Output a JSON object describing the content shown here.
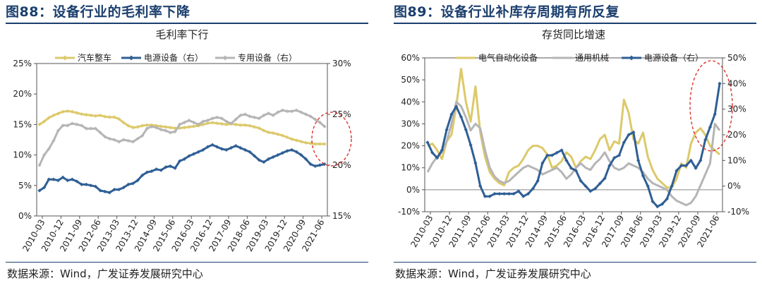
{
  "left": {
    "figure_title": "图88：设备行业的毛利率下降",
    "source": "数据来源：Wind，广发证券发展研究中心",
    "chart_data": {
      "type": "line",
      "title": "毛利率下行",
      "x_ticks": [
        "2010-03",
        "2010-12",
        "2011-09",
        "2012-06",
        "2013-03",
        "2013-12",
        "2014-09",
        "2015-06",
        "2016-03",
        "2016-12",
        "2017-09",
        "2018-06",
        "2019-03",
        "2019-12",
        "2020-09",
        "2021-06"
      ],
      "y_left": {
        "min": 0,
        "max": 25,
        "ticks": [
          "0%",
          "5%",
          "10%",
          "15%",
          "20%",
          "25%"
        ]
      },
      "y_right": {
        "min": 15,
        "max": 30,
        "ticks": [
          "15%",
          "20%",
          "25%",
          "30%"
        ]
      },
      "series": [
        {
          "name": "汽车整车",
          "axis": "left",
          "color": "#dcc96a",
          "marker": "diamond",
          "values": [
            15.0,
            15.5,
            16.1,
            16.5,
            16.8,
            17.1,
            17.2,
            17.1,
            16.9,
            16.7,
            16.6,
            16.5,
            16.4,
            16.5,
            16.3,
            16.2,
            16.2,
            15.9,
            15.3,
            14.8,
            14.5,
            14.6,
            14.8,
            14.9,
            14.9,
            14.8,
            14.7,
            14.6,
            14.5,
            14.4,
            14.4,
            14.5,
            14.6,
            14.7,
            14.8,
            15.0,
            15.2,
            15.3,
            15.2,
            15.1,
            15.0,
            15.1,
            15.0,
            14.9,
            14.9,
            14.8,
            14.6,
            14.4,
            14.0,
            13.7,
            13.6,
            13.4,
            13.2,
            12.9,
            12.6,
            12.4,
            12.2,
            12.0,
            11.9,
            11.8,
            11.8,
            11.8
          ]
        },
        {
          "name": "电源设备（右）",
          "axis": "right",
          "color": "#2f5f95",
          "marker": "diamond",
          "values": [
            17.5,
            17.8,
            18.6,
            18.6,
            18.5,
            18.8,
            18.5,
            18.6,
            18.4,
            18.1,
            18.1,
            18.0,
            17.9,
            17.5,
            17.4,
            17.3,
            17.6,
            17.6,
            17.8,
            18.1,
            18.2,
            18.5,
            19.0,
            19.3,
            19.4,
            19.6,
            19.5,
            19.8,
            19.9,
            19.7,
            20.4,
            20.6,
            20.9,
            21.1,
            21.3,
            21.5,
            21.8,
            22.0,
            21.8,
            21.6,
            21.5,
            21.7,
            21.9,
            21.7,
            21.5,
            21.3,
            20.9,
            20.5,
            20.3,
            20.6,
            20.8,
            21.0,
            21.2,
            21.4,
            21.5,
            21.3,
            21.0,
            20.6,
            20.1,
            19.9,
            20.0,
            20.1
          ]
        },
        {
          "name": "专用设备（右）",
          "axis": "right",
          "color": "#b5b5b5",
          "marker": "diamond",
          "values": [
            20.0,
            21.0,
            21.6,
            22.4,
            23.4,
            23.9,
            23.9,
            24.1,
            24.0,
            23.9,
            23.6,
            23.6,
            23.6,
            23.2,
            22.8,
            22.6,
            22.5,
            22.3,
            22.5,
            22.4,
            22.3,
            22.6,
            22.9,
            23.6,
            23.8,
            23.7,
            23.5,
            23.4,
            23.2,
            23.3,
            24.0,
            24.2,
            24.4,
            24.2,
            24.0,
            24.3,
            24.4,
            24.6,
            24.7,
            24.6,
            24.3,
            24.1,
            24.5,
            24.9,
            25.0,
            24.8,
            24.7,
            24.6,
            24.9,
            25.1,
            24.9,
            25.2,
            25.4,
            25.3,
            25.3,
            25.4,
            25.2,
            25.0,
            24.8,
            24.5,
            24.2,
            23.8
          ]
        }
      ],
      "legend": "top"
    }
  },
  "right": {
    "figure_title": "图89：设备行业补库存周期有所反复",
    "source": "数据来源：Wind，广发证券发展研究中心",
    "chart_data": {
      "type": "line",
      "title": "存货同比增速",
      "x_ticks": [
        "2010-03",
        "2010-12",
        "2011-09",
        "2012-06",
        "2013-03",
        "2013-12",
        "2014-09",
        "2015-06",
        "2016-03",
        "2016-12",
        "2017-09",
        "2018-06",
        "2019-03",
        "2019-12",
        "2020-09",
        "2021-06"
      ],
      "y_left": {
        "min": -10,
        "max": 60,
        "ticks": [
          "-10%",
          "0%",
          "10%",
          "20%",
          "30%",
          "40%",
          "50%",
          "60%"
        ]
      },
      "y_right": {
        "min": -10,
        "max": 50,
        "ticks": [
          "-10%",
          "0%",
          "10%",
          "20%",
          "30%",
          "40%",
          "50%"
        ]
      },
      "series": [
        {
          "name": "电气自动化设备",
          "axis": "left",
          "color": "#dcc96a",
          "marker": "none",
          "values": [
            20,
            21,
            18,
            14,
            22,
            25,
            38,
            55,
            40,
            31,
            47,
            26,
            15,
            8,
            5,
            3,
            2,
            8,
            10,
            11,
            14,
            18,
            20,
            20,
            19,
            16,
            10,
            11,
            13,
            17,
            15,
            10,
            13,
            15,
            14,
            18,
            23,
            25,
            18,
            22,
            21,
            41,
            35,
            23,
            21,
            26,
            15,
            9,
            5,
            3,
            1,
            1,
            5,
            12,
            10,
            21,
            26,
            28,
            25,
            20,
            18,
            16
          ]
        },
        {
          "name": "通用机械",
          "axis": "left",
          "color": "#b5b5b5",
          "marker": "none",
          "values": [
            8,
            12,
            15,
            17,
            22,
            30,
            40,
            38,
            33,
            27,
            30,
            28,
            18,
            10,
            6,
            4,
            3,
            4,
            6,
            8,
            10,
            11,
            10,
            9,
            7,
            8,
            9,
            10,
            8,
            5,
            7,
            10,
            12,
            10,
            9,
            12,
            14,
            17,
            13,
            10,
            9,
            10,
            12,
            11,
            10,
            8,
            5,
            3,
            2,
            1,
            0,
            -3,
            -5,
            -6,
            -7,
            -6,
            -3,
            2,
            7,
            12,
            30,
            27
          ]
        },
        {
          "name": "电源设备（右）",
          "axis": "right",
          "color": "#2f5f95",
          "marker": "diamond",
          "values": [
            17,
            13,
            11,
            14,
            22,
            28,
            31,
            27,
            22,
            16,
            9,
            0,
            -4,
            -4,
            -3,
            -3,
            -3,
            -3,
            -3,
            -2,
            -4,
            -3,
            -1,
            2,
            9,
            12,
            12,
            13,
            14,
            10,
            7,
            6,
            2,
            0,
            -2,
            -1,
            1,
            3,
            8,
            11,
            12,
            17,
            20,
            21,
            10,
            4,
            0,
            -6,
            -8,
            -7,
            -5,
            0,
            6,
            8,
            8,
            10,
            7,
            10,
            18,
            23,
            28,
            40
          ]
        }
      ],
      "legend": "top"
    }
  }
}
